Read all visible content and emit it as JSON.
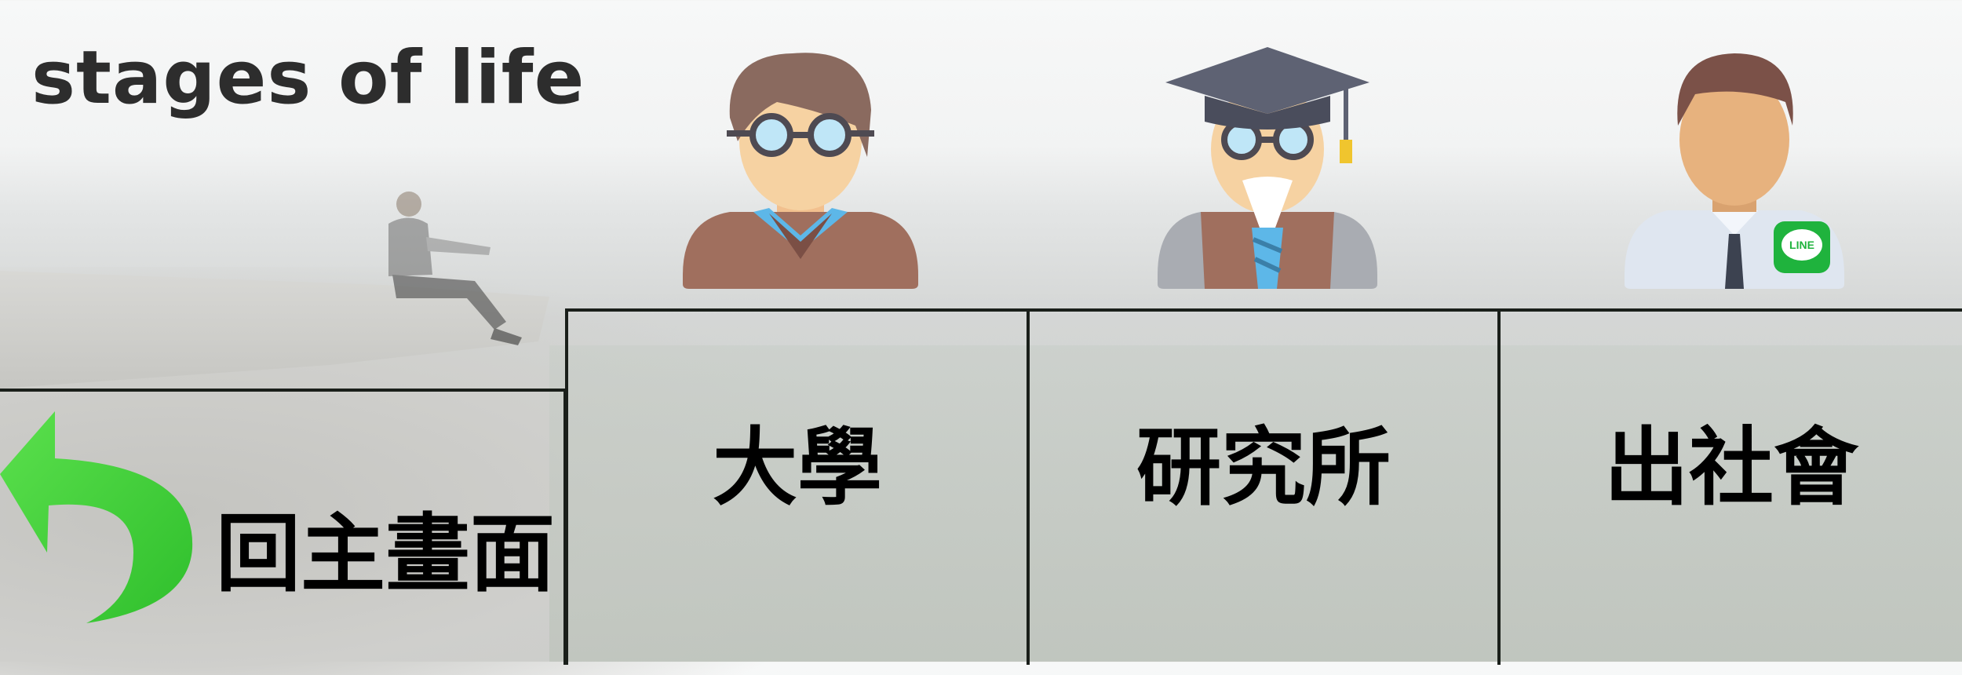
{
  "page": {
    "title": "stages of life"
  },
  "back": {
    "label": "回主畫面",
    "icon": "back-arrow-icon",
    "icon_color": "#3fcf3a"
  },
  "stages": [
    {
      "label": "大學",
      "icon": "student-avatar-icon"
    },
    {
      "label": "研究所",
      "icon": "graduate-avatar-icon"
    },
    {
      "label": "出社會",
      "icon": "businessman-avatar-icon",
      "badge_text": "LINE"
    }
  ],
  "colors": {
    "grid_line": "#1a1f1a",
    "title_text": "#2d2d2d",
    "line_badge": "#1fb33d"
  }
}
